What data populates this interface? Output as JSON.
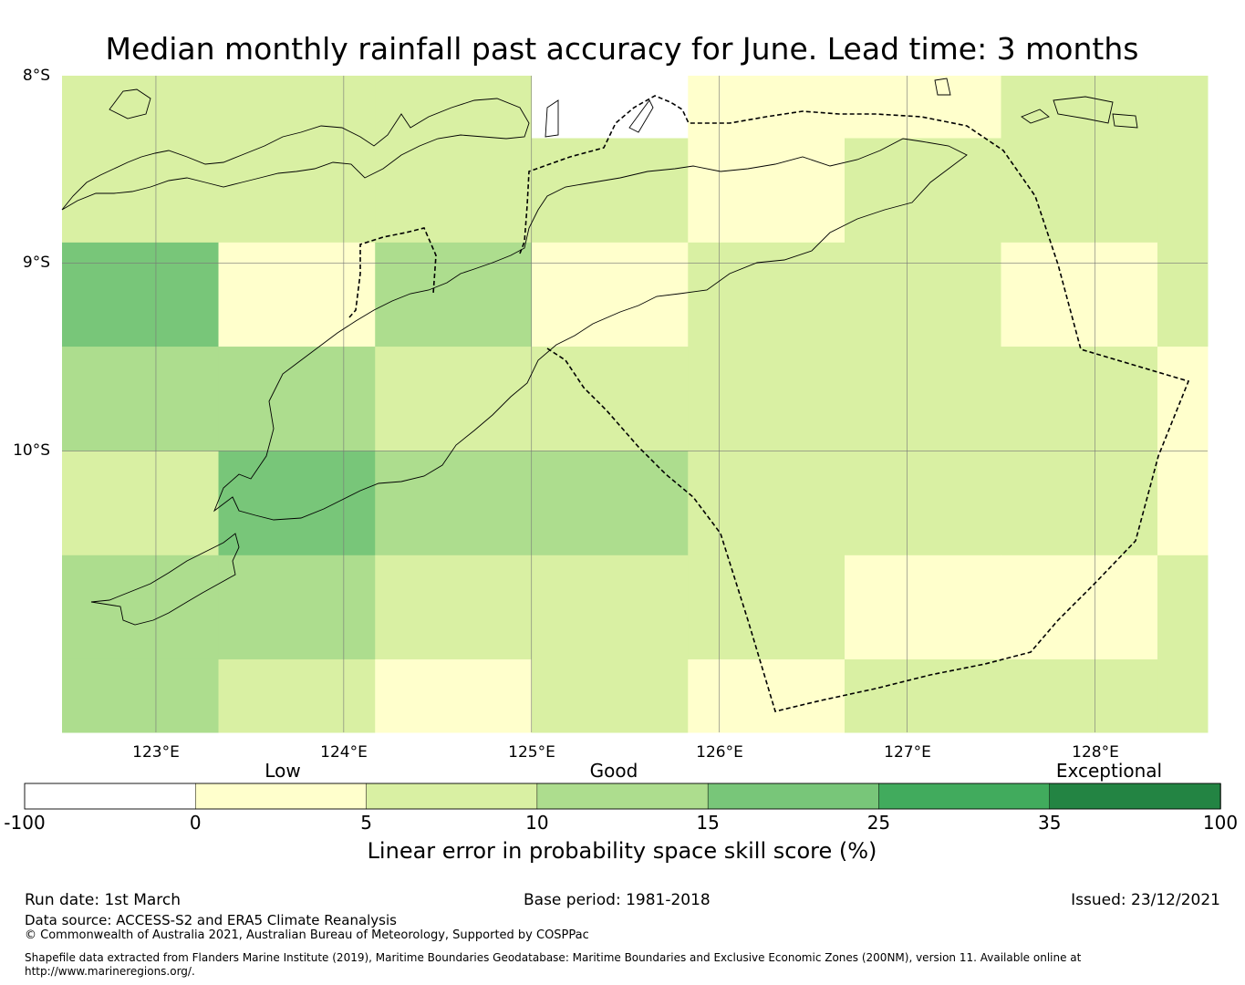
{
  "title": "Median monthly rainfall past accuracy for June. Lead time: 3 months",
  "map": {
    "lat_labels": [
      "8°S",
      "9°S",
      "10°S"
    ],
    "lon_labels": [
      "123°E",
      "124°E",
      "125°E",
      "126°E",
      "127°E",
      "128°E"
    ],
    "lon_range": [
      122.5,
      128.6
    ],
    "lat_range": [
      -8.0,
      -11.5
    ],
    "grid_lons": [
      123,
      124,
      125,
      126,
      127,
      128
    ],
    "grid_lats": [
      -9,
      -10
    ],
    "cell_lon_edges": [
      122.5,
      123.333,
      124.167,
      125.0,
      125.833,
      126.667,
      127.5,
      128.333,
      128.6
    ],
    "cell_lat_edges": [
      -8.0,
      -8.333,
      -8.889,
      -9.444,
      -10.0,
      -10.556,
      -11.111,
      -11.5
    ],
    "skill_category_grid": [
      [
        "low-good",
        "low-good",
        "low-good",
        "missing",
        "low",
        "low",
        "low-good",
        "low-good"
      ],
      [
        "low-good",
        "low-good",
        "low-good",
        "low-good",
        "low",
        "low-good",
        "low-good",
        "low-good"
      ],
      [
        "good",
        "low",
        "good-mid",
        "low",
        "low-good",
        "low-good",
        "low",
        "low-good"
      ],
      [
        "good-mid",
        "good-mid",
        "low-good",
        "low-good",
        "low-good",
        "low-good",
        "low-good",
        "low"
      ],
      [
        "low-good",
        "good",
        "good-mid",
        "good-mid",
        "low-good",
        "low-good",
        "low-good",
        "low"
      ],
      [
        "good-mid",
        "good-mid",
        "low-good",
        "low-good",
        "low-good",
        "low",
        "low",
        "low-good"
      ],
      [
        "good-mid",
        "low-good",
        "low",
        "low-good",
        "low",
        "low-good",
        "low-good",
        "low-good"
      ]
    ]
  },
  "colorbar": {
    "category_labels": [
      "Low",
      "Good",
      "Exceptional"
    ],
    "ticks": [
      "-100",
      "0",
      "5",
      "10",
      "15",
      "25",
      "35",
      "100"
    ],
    "colors": {
      "missing": "#ffffff",
      "low": "#ffffcc",
      "low-good": "#d9f0a3",
      "good-mid": "#addd8e",
      "good": "#78c679",
      "very-good": "#41ab5d",
      "exceptional": "#238443"
    },
    "label": "Linear error in probability space skill score (%)"
  },
  "footer": {
    "run_date": "Run date: 1st March",
    "base_period": "Base period: 1981-2018",
    "issued": "Issued: 23/12/2021",
    "data_source": "Data source: ACCESS-S2 and ERA5 Climate Reanalysis",
    "copyright": "© Commonwealth of Australia 2021, Australian Bureau of Meteorology, Supported by COSPPac",
    "shapefile": "Shapefile data extracted from Flanders Marine Institute (2019), Maritime Boundaries Geodatabase: Maritime Boundaries and Exclusive Economic Zones (200NM), version 11. Available online at http://www.marineregions.org/."
  }
}
